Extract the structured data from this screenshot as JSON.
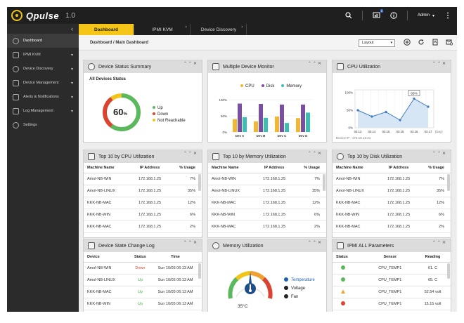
{
  "app": {
    "brand": "Qpulse",
    "version": "1.0"
  },
  "topbar": {
    "notification_count": "1",
    "user": "Admin"
  },
  "sidebar": {
    "items": [
      {
        "label": "Dashboard",
        "active": true
      },
      {
        "label": "IPMI KVM"
      },
      {
        "label": "Device Discovery"
      },
      {
        "label": "Device Management"
      },
      {
        "label": "Alerts & Notifications"
      },
      {
        "label": "Log Management"
      },
      {
        "label": "Settings"
      }
    ]
  },
  "tabs": [
    {
      "label": "Dashboard",
      "active": true
    },
    {
      "label": "IPMI KVM"
    },
    {
      "label": "Device Discovery"
    }
  ],
  "breadcrumb": "Dashboard / Main Dashboard",
  "layout_select": "Layout",
  "device_status": {
    "title": "Device Status Summary",
    "subtitle": "All Devices Status",
    "percent": "60",
    "percent_unit": "%",
    "legend": [
      {
        "label": "Up",
        "color": "#5cb85c"
      },
      {
        "label": "Down",
        "color": "#d9432f"
      },
      {
        "label": "Not Reachable",
        "color": "#f0c419"
      }
    ]
  },
  "multi_monitor": {
    "title": "Multiple Device Monitor",
    "chart_data": {
      "type": "bar",
      "categories": [
        "Dev A",
        "Dev B",
        "Dev C",
        "Dev D"
      ],
      "series": [
        {
          "name": "CPU",
          "values": [
            40,
            33,
            48,
            43
          ],
          "color": "#f2b632"
        },
        {
          "name": "Disk",
          "values": [
            88,
            87,
            85,
            85
          ],
          "color": "#7b4fa0"
        },
        {
          "name": "Memory",
          "values": [
            46,
            44,
            28,
            60
          ],
          "color": "#3bbfb4"
        }
      ],
      "yticks": [
        "0%",
        "50%",
        "100%"
      ],
      "ylim": [
        0,
        100
      ]
    }
  },
  "cpu_util": {
    "title": "CPU Utilization",
    "tooltip": "83%",
    "footer": "Device IP : 172.10.13.21",
    "chart_data": {
      "type": "area",
      "x": [
        "03.13",
        "03.14",
        "03.15",
        "03.15",
        "03.16",
        "03.17"
      ],
      "values": [
        50,
        32,
        45,
        22,
        83,
        60
      ],
      "yticks": [
        "100%",
        "50%",
        "0%"
      ],
      "xunit": "(Day)",
      "ylim": [
        0,
        100
      ]
    }
  },
  "top_cpu": {
    "title": "Top 10 by CPU Utilization",
    "headers": [
      "Machine Name",
      "IP Address",
      "% Usage"
    ],
    "rows": [
      [
        "Amol-NB-WIN",
        "172.168.1.25",
        "7%"
      ],
      [
        "Amol-NB-LINUX",
        "172.168.1.25",
        "35%"
      ],
      [
        "KKK-NB-MAC",
        "172.168.1.25",
        "12%"
      ],
      [
        "KKK-NB-WIN",
        "172.168.1.25",
        "6%"
      ],
      [
        "KKK-NB-MAC",
        "172.168.1.25",
        "2%"
      ]
    ]
  },
  "top_mem": {
    "title": "Top 10 by Memory Utilization",
    "headers": [
      "Machine Name",
      "IP Address",
      "% Usage"
    ],
    "rows": [
      [
        "Amol-NB-WIN",
        "172.168.1.25",
        "7%"
      ],
      [
        "Amol-NB-LINUX",
        "172.168.1.25",
        "35%"
      ],
      [
        "KKK-NB-MAC",
        "172.168.1.25",
        "12%"
      ],
      [
        "KKK-NB-WIN",
        "172.168.1.25",
        "6%"
      ],
      [
        "KKK-NB-MAC",
        "172.168.1.25",
        "2%"
      ]
    ]
  },
  "top_disk": {
    "title": "Top 10 by Disk Utilization",
    "headers": [
      "Machine Name",
      "IP Address",
      "% Usage"
    ],
    "rows": [
      [
        "Amol-NB-WIN",
        "172.168.1.25",
        "7%"
      ],
      [
        "Amol-NB-LINUX",
        "172.168.1.25",
        "35%"
      ],
      [
        "KKK-NB-MAC",
        "172.168.1.25",
        "12%"
      ],
      [
        "KKK-NB-WIN",
        "172.168.1.25",
        "6%"
      ],
      [
        "KKK-NB-MAC",
        "172.168.1.25",
        "2%"
      ]
    ]
  },
  "state_log": {
    "title": "Device State Change Log",
    "headers": [
      "Device",
      "Status",
      "Time"
    ],
    "rows": [
      [
        "Amol-NB-WIN",
        "Down",
        "Sun 10/05 06:13 AM"
      ],
      [
        "Amol-NB-LINUX",
        "Up",
        "Sun 10/05 06:13 AM"
      ],
      [
        "KKK-NB-MAC",
        "Up",
        "Sun 10/05 06:13 AM"
      ],
      [
        "KKK-NB-WIN",
        "Up",
        "Sun 10/05 06:13 AM"
      ]
    ]
  },
  "mem_util": {
    "title": "Memory Utilization",
    "temperature": "35°C",
    "legend": [
      "Temperature",
      "Voltage",
      "Fan"
    ]
  },
  "ipmi": {
    "title": "IPMI ALL Parameters",
    "headers": [
      "Status",
      "Sensor",
      "Reading"
    ],
    "rows": [
      {
        "status": "ok",
        "sensor": "CPU_TEMP1",
        "reading": "61. C"
      },
      {
        "status": "ok",
        "sensor": "CPU_TEMP1",
        "reading": "65. C"
      },
      {
        "status": "warn",
        "sensor": "CPU_TEMP1",
        "reading": "52.54 volt"
      },
      {
        "status": "error",
        "sensor": "CPU_TEMP1",
        "reading": "15.15 volt"
      }
    ]
  }
}
